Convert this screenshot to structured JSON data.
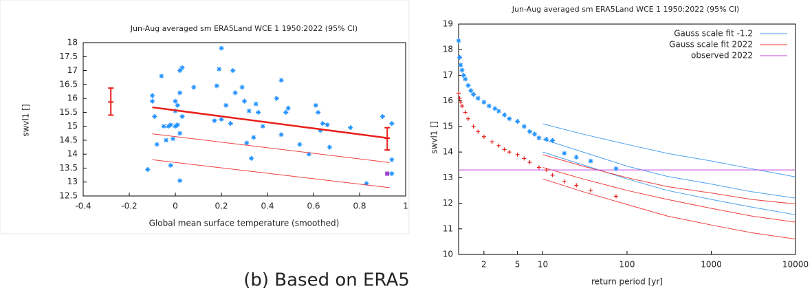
{
  "chart_data": [
    {
      "type": "scatter",
      "title": "Jun-Aug averaged  sm ERA5Land WCE 1 1950:2022 (95% CI)",
      "x_label": "Global mean surface temperature (smoothed)",
      "y_label": "swvl1 []",
      "xlim": [
        -0.4,
        1
      ],
      "xticks": [
        -0.4,
        -0.2,
        0,
        0.2,
        0.4,
        0.6,
        0.8,
        1
      ],
      "ylim": [
        12.5,
        18
      ],
      "yticks": [
        12.5,
        13,
        13.5,
        14,
        14.5,
        15,
        15.5,
        16,
        16.5,
        17,
        17.5,
        18
      ],
      "color": "#1e90ff",
      "marker": "*",
      "x": [
        -0.12,
        -0.1,
        -0.1,
        -0.09,
        -0.08,
        -0.06,
        -0.05,
        -0.03,
        -0.04,
        -0.02,
        -0.02,
        -0.01,
        0,
        0,
        0.01,
        0,
        0.01,
        0.03,
        0.02,
        0.02,
        0.03,
        0.02,
        0.02,
        0.08,
        0.17,
        0.18,
        0.19,
        0.2,
        0.2,
        0.22,
        0.24,
        0.25,
        0.26,
        0.29,
        0.3,
        0.31,
        0.32,
        0.33,
        0.34,
        0.35,
        0.36,
        0.38,
        0.44,
        0.46,
        0.46,
        0.48,
        0.49,
        0.54,
        0.58,
        0.61,
        0.62,
        0.63,
        0.64,
        0.66,
        0.67,
        0.76,
        0.83,
        0.9,
        0.94,
        0.94,
        0.94
      ],
      "values": [
        13.45,
        16.1,
        15.9,
        15.35,
        14.35,
        16.8,
        15.0,
        15.0,
        14.5,
        15.05,
        13.6,
        14.55,
        15.55,
        15.9,
        15.75,
        15.0,
        15.05,
        15.35,
        16.2,
        17.0,
        17.1,
        14.75,
        13.05,
        16.4,
        15.2,
        16.45,
        17.05,
        15.25,
        17.8,
        15.75,
        15.1,
        17.0,
        16.2,
        16.4,
        15.9,
        14.4,
        15.55,
        13.85,
        14.6,
        15.8,
        15.5,
        15.0,
        16.0,
        14.7,
        16.65,
        15.5,
        15.65,
        14.35,
        14.0,
        15.75,
        15.5,
        14.85,
        15.1,
        15.05,
        14.25,
        14.95,
        12.95,
        15.35,
        13.3,
        15.1,
        13.8
      ],
      "observed": {
        "color": "#a040d0",
        "x": 0.92,
        "value": 13.3
      },
      "lines": [
        {
          "color": "#e8201c",
          "width": 2.5,
          "x": [
            -0.1,
            0.93
          ],
          "values": [
            15.68,
            14.57
          ]
        },
        {
          "color": "#f04040",
          "width": 1,
          "x": [
            -0.1,
            0.93
          ],
          "values": [
            14.73,
            13.7
          ]
        },
        {
          "color": "#f04040",
          "width": 1,
          "x": [
            -0.1,
            0.93
          ],
          "values": [
            13.8,
            12.8
          ]
        }
      ],
      "error_bars": [
        {
          "color": "#e8201c",
          "x": -0.28,
          "value": 15.87,
          "low": 15.4,
          "high": 16.37
        },
        {
          "color": "#e8201c",
          "x": 0.92,
          "value": 14.57,
          "low": 14.15,
          "high": 14.95
        }
      ]
    },
    {
      "type": "line",
      "title": "Jun-Aug averaged  sm ERA5Land WCE 1 1950:2022 (95% CI)",
      "x_label": "return period [yr]",
      "y_label": "swvl1 []",
      "xlog": true,
      "xlim": [
        1,
        10000
      ],
      "xticks": [
        2,
        5,
        10,
        100,
        1000,
        10000
      ],
      "ylim": [
        10,
        19
      ],
      "yticks": [
        10,
        11,
        12,
        13,
        14,
        15,
        16,
        17,
        18,
        19
      ],
      "legend": "upper right",
      "series": [
        {
          "name": "Gauss scale fit -1.2",
          "color": "#4aa0f0",
          "x": [
            10,
            30,
            100,
            300,
            1000,
            3000,
            10000
          ],
          "values": [
            14.5,
            14.0,
            13.45,
            13.05,
            12.75,
            12.45,
            12.2
          ],
          "upper": [
            15.1,
            14.7,
            14.3,
            13.95,
            13.65,
            13.35,
            13.03
          ],
          "lower": [
            14.0,
            13.5,
            12.95,
            12.5,
            12.15,
            11.85,
            11.55
          ]
        },
        {
          "name": "Gauss scale fit 2022",
          "color": "#f04040",
          "x": [
            10,
            30,
            100,
            300,
            1000,
            3000,
            10000
          ],
          "values": [
            13.4,
            12.95,
            12.5,
            12.15,
            11.8,
            11.5,
            11.26
          ],
          "upper": [
            13.9,
            13.45,
            13.0,
            12.65,
            12.4,
            12.15,
            11.97
          ],
          "lower": [
            12.95,
            12.45,
            11.95,
            11.5,
            11.15,
            10.85,
            10.6
          ]
        },
        {
          "name": "observed 2022",
          "color": "#c040e0",
          "x": [
            1,
            10000
          ],
          "values": [
            13.3,
            13.3
          ]
        }
      ],
      "points": [
        {
          "color": "#1e90ff",
          "marker": "*",
          "x": [
            1.0,
            1.03,
            1.06,
            1.1,
            1.15,
            1.2,
            1.3,
            1.4,
            1.5,
            1.7,
            2,
            2.3,
            2.7,
            3,
            3.5,
            4,
            5,
            6,
            7,
            8,
            9,
            11,
            13,
            18,
            25,
            37,
            74
          ],
          "values": [
            18.35,
            17.7,
            17.4,
            17.2,
            17.0,
            16.85,
            16.6,
            16.4,
            16.25,
            16.1,
            15.95,
            15.8,
            15.7,
            15.6,
            15.45,
            15.3,
            15.2,
            15.0,
            14.8,
            14.7,
            14.55,
            14.5,
            14.45,
            13.95,
            13.8,
            13.65,
            13.35
          ]
        },
        {
          "color": "#e8201c",
          "marker": "+",
          "x": [
            1.0,
            1.03,
            1.06,
            1.1,
            1.2,
            1.3,
            1.5,
            1.7,
            2,
            2.5,
            3,
            3.5,
            4,
            5,
            6,
            7,
            9,
            11,
            13,
            18,
            25,
            37,
            74
          ],
          "values": [
            16.3,
            16.1,
            15.95,
            15.8,
            15.55,
            15.3,
            15.0,
            14.8,
            14.6,
            14.4,
            14.25,
            14.1,
            14.0,
            13.9,
            13.75,
            13.6,
            13.4,
            13.3,
            13.1,
            12.85,
            12.7,
            12.5,
            12.27
          ]
        }
      ]
    }
  ],
  "caption": "(b) Based on ERA5"
}
